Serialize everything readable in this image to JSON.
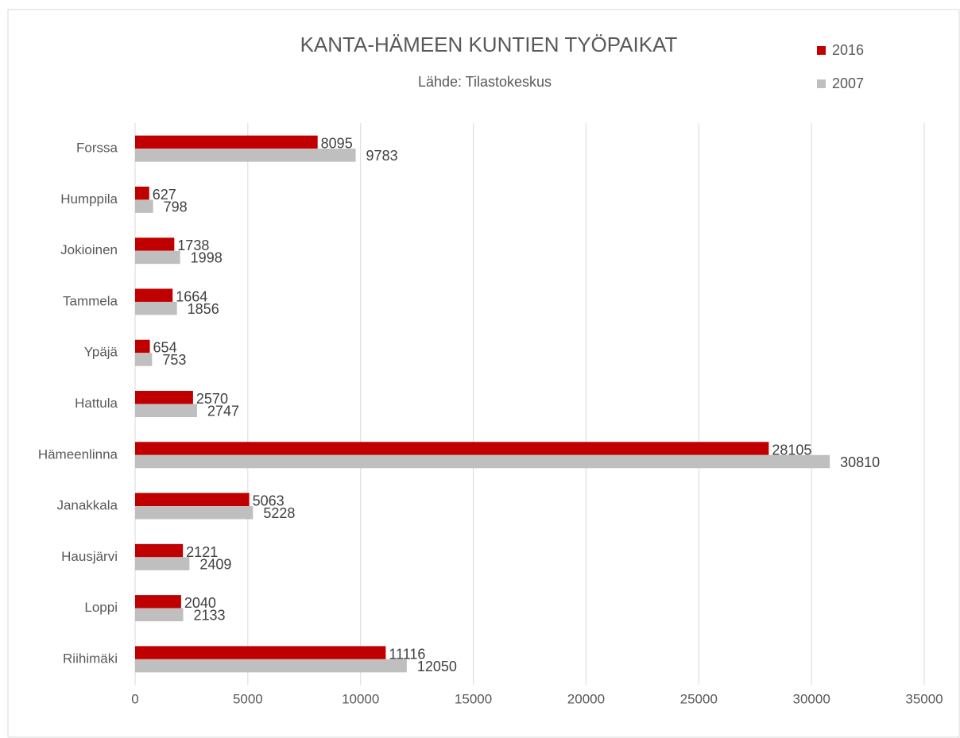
{
  "chart_data": {
    "type": "barh",
    "title": "KANTA-HÄMEEN KUNTIEN TYÖPAIKAT",
    "subtitle": "Lähde: Tilastokeskus",
    "categories": [
      "Forssa",
      "Humppila",
      "Jokioinen",
      "Tammela",
      "Ypäjä",
      "Hattula",
      "Hämeenlinna",
      "Janakkala",
      "Hausjärvi",
      "Loppi",
      "Riihimäki"
    ],
    "series": [
      {
        "name": "2016",
        "color": "#c00000",
        "values": [
          8095,
          627,
          1738,
          1664,
          654,
          2570,
          28105,
          5063,
          2121,
          2040,
          11116
        ]
      },
      {
        "name": "2007",
        "color": "#bfbfbf",
        "values": [
          9783,
          798,
          1998,
          1856,
          753,
          2747,
          30810,
          5228,
          2409,
          2133,
          12050
        ]
      }
    ],
    "xlim": [
      0,
      35000
    ],
    "xticks": [
      0,
      5000,
      10000,
      15000,
      20000,
      25000,
      30000,
      35000
    ],
    "grid": true,
    "legend": "top-right"
  }
}
